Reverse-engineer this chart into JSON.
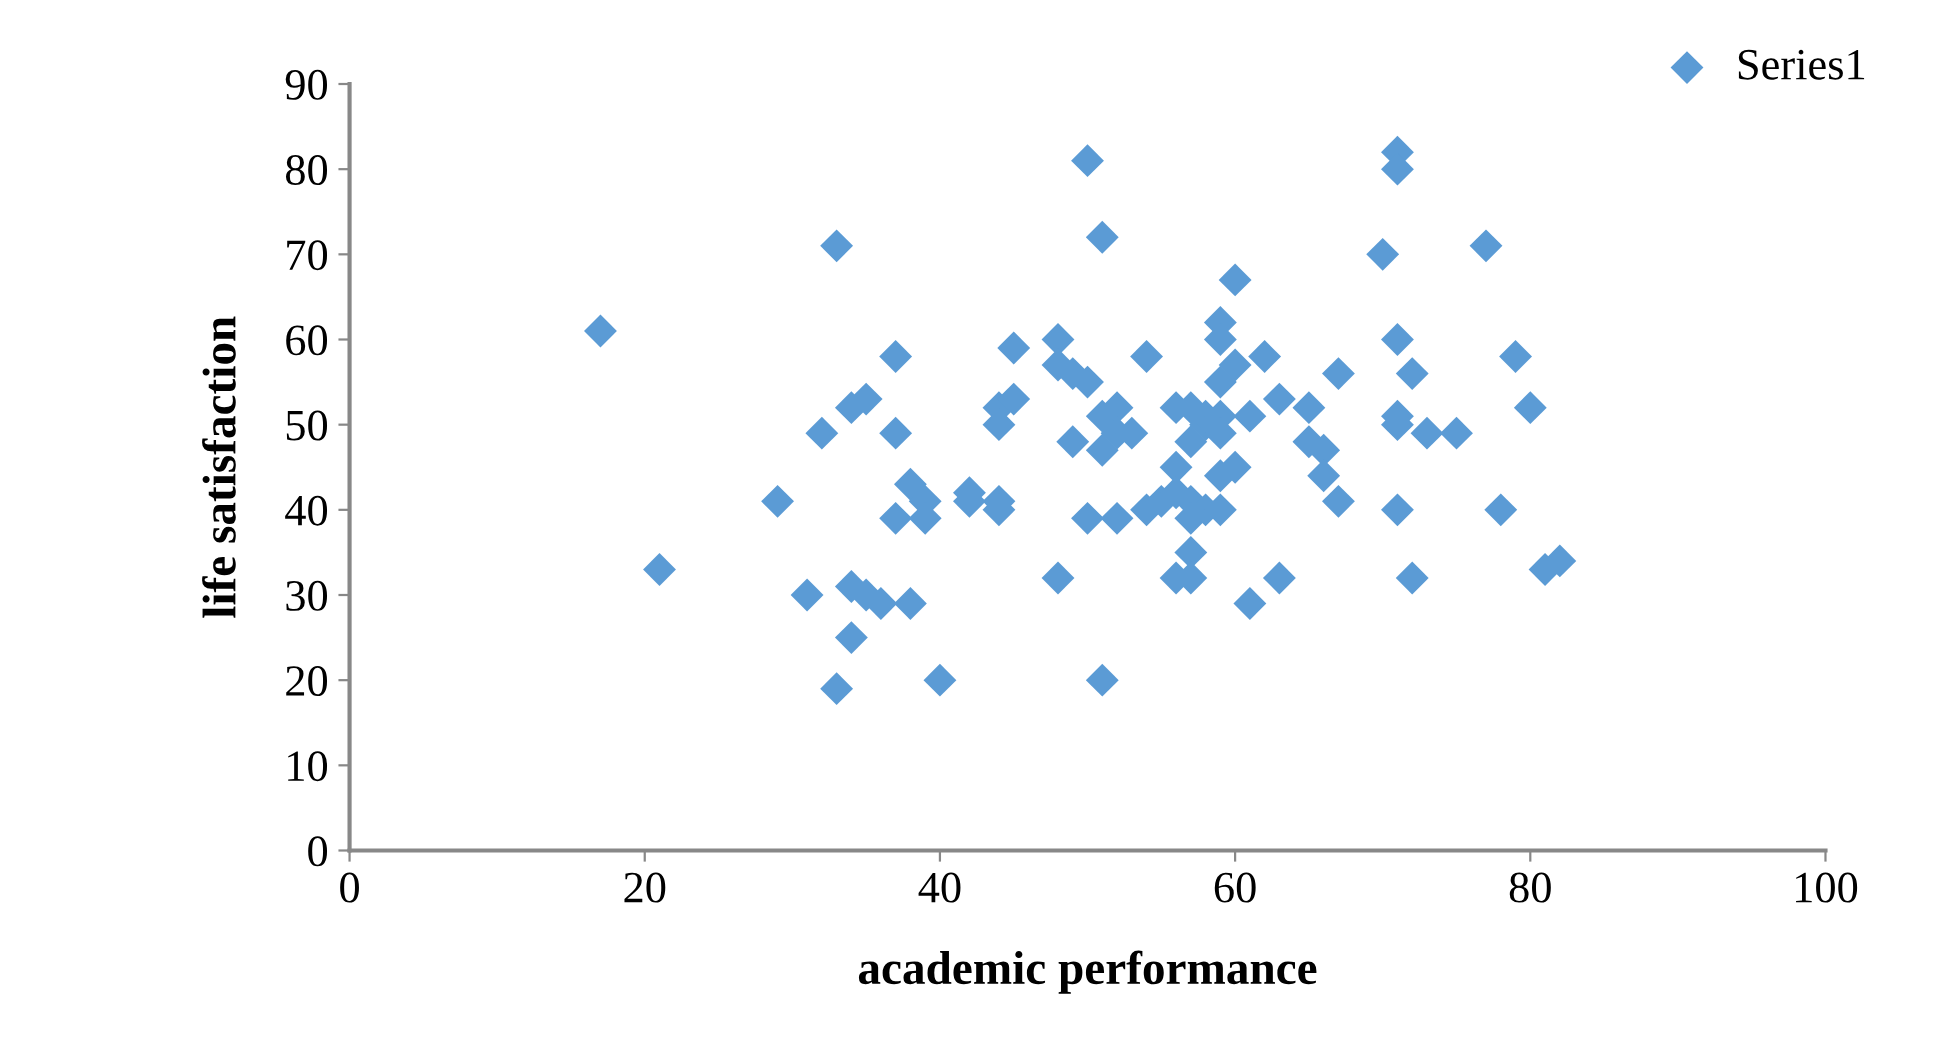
{
  "chart_data": {
    "type": "scatter",
    "xlabel": "academic performance",
    "ylabel": "life satisfaction",
    "xlim": [
      0,
      100
    ],
    "xticks": [
      0,
      20,
      40,
      60,
      80,
      100
    ],
    "ylim": [
      0,
      90
    ],
    "yticks": [
      0,
      10,
      20,
      30,
      40,
      50,
      60,
      70,
      80,
      90
    ],
    "grid": false,
    "legend": "top right",
    "marker": "diamond",
    "series": [
      {
        "name": "Series1",
        "color": "#5b9bd5",
        "x": [
          17,
          21,
          29,
          31,
          32,
          33,
          33,
          34,
          34,
          34,
          35,
          35,
          36,
          37,
          37,
          37,
          38,
          38,
          39,
          39,
          40,
          42,
          42,
          44,
          44,
          44,
          44,
          45,
          45,
          48,
          48,
          48,
          49,
          49,
          50,
          50,
          50,
          51,
          51,
          51,
          51,
          52,
          52,
          52,
          53,
          54,
          54,
          55,
          56,
          56,
          56,
          56,
          57,
          57,
          57,
          57,
          57,
          57,
          58,
          58,
          58,
          59,
          59,
          59,
          59,
          59,
          59,
          59,
          60,
          60,
          60,
          61,
          61,
          62,
          63,
          63,
          65,
          65,
          66,
          66,
          67,
          67,
          70,
          71,
          71,
          71,
          71,
          71,
          71,
          72,
          72,
          73,
          75,
          77,
          78,
          79,
          80,
          81,
          82
        ],
        "values": [
          61,
          33,
          41,
          30,
          49,
          71,
          19,
          52,
          31,
          25,
          53,
          30,
          29,
          58,
          49,
          39,
          43,
          29,
          41,
          39,
          20,
          42,
          41,
          52,
          50,
          41,
          40,
          59,
          53,
          60,
          57,
          32,
          48,
          56,
          81,
          55,
          39,
          72,
          51,
          47,
          20,
          52,
          49,
          39,
          49,
          58,
          40,
          41,
          52,
          45,
          42,
          32,
          52,
          48,
          41,
          39,
          35,
          32,
          50,
          40,
          51,
          62,
          60,
          55,
          51,
          49,
          44,
          40,
          67,
          57,
          45,
          51,
          29,
          58,
          53,
          32,
          52,
          48,
          47,
          44,
          56,
          41,
          70,
          82,
          80,
          60,
          51,
          50,
          40,
          56,
          32,
          49,
          49,
          71,
          40,
          58,
          52,
          33,
          34
        ]
      }
    ]
  }
}
